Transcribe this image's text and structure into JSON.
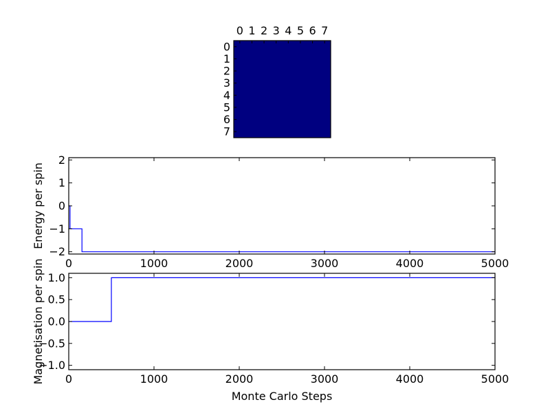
{
  "chart_data": [
    {
      "type": "heatmap",
      "x_ticks": [
        "0",
        "1",
        "2",
        "3",
        "4",
        "5",
        "6",
        "7"
      ],
      "y_ticks": [
        "0",
        "1",
        "2",
        "3",
        "4",
        "5",
        "6",
        "7"
      ],
      "grid": [
        [
          1,
          1,
          1,
          1,
          1,
          1,
          1,
          1
        ],
        [
          1,
          1,
          1,
          1,
          1,
          1,
          1,
          1
        ],
        [
          1,
          1,
          1,
          1,
          1,
          1,
          1,
          1
        ],
        [
          1,
          1,
          1,
          1,
          1,
          1,
          1,
          1
        ],
        [
          1,
          1,
          1,
          1,
          1,
          1,
          1,
          1
        ],
        [
          1,
          1,
          1,
          1,
          1,
          1,
          1,
          1
        ],
        [
          1,
          1,
          1,
          1,
          1,
          1,
          1,
          1
        ],
        [
          1,
          1,
          1,
          1,
          1,
          1,
          1,
          1
        ]
      ],
      "color": "#000080"
    },
    {
      "type": "line",
      "xlabel": "",
      "ylabel": "Energy per spin",
      "xlim": [
        0,
        5000
      ],
      "ylim": [
        -2.1,
        2.1
      ],
      "x_ticks": [
        0,
        1000,
        2000,
        3000,
        4000,
        5000
      ],
      "y_ticks": [
        -2,
        -1,
        0,
        1,
        2
      ],
      "y_tick_labels": [
        "−2",
        "−1",
        "0",
        "1",
        "2"
      ],
      "color": "#0000ff",
      "points": [
        [
          0,
          0
        ],
        [
          15,
          0
        ],
        [
          15,
          -1
        ],
        [
          155,
          -1
        ],
        [
          155,
          -2
        ],
        [
          5000,
          -2
        ]
      ]
    },
    {
      "type": "line",
      "xlabel": "Monte Carlo Steps",
      "ylabel": "Magnetisation per spin",
      "xlim": [
        0,
        5000
      ],
      "ylim": [
        -1.1,
        1.1
      ],
      "x_ticks": [
        0,
        1000,
        2000,
        3000,
        4000,
        5000
      ],
      "y_ticks": [
        -1.0,
        -0.5,
        0.0,
        0.5,
        1.0
      ],
      "y_tick_labels": [
        "−1.0",
        "−0.5",
        "0.0",
        "0.5",
        "1.0"
      ],
      "color": "#0000ff",
      "points": [
        [
          0,
          0
        ],
        [
          500,
          0
        ],
        [
          500,
          1
        ],
        [
          5000,
          1
        ]
      ]
    }
  ]
}
